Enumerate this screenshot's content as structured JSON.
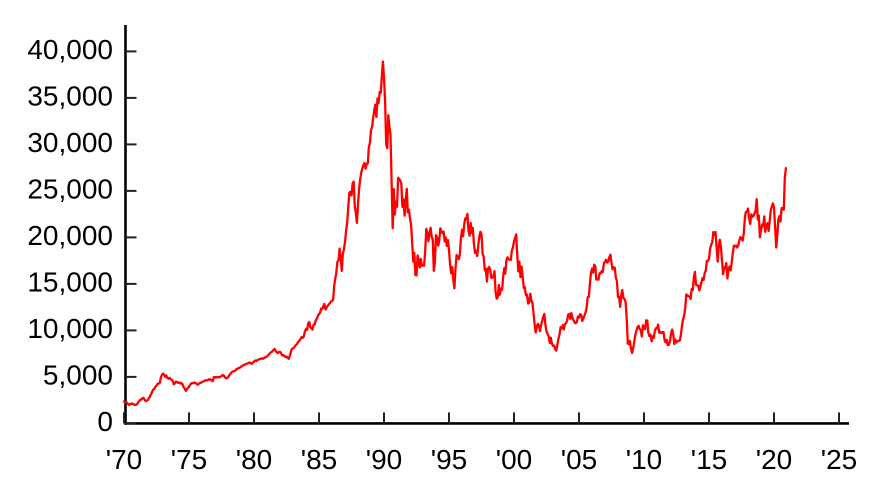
{
  "figure": {
    "background": "#ffffff",
    "axis_color": "#000000",
    "tick_color": "#222222"
  },
  "chart_data": {
    "type": "line",
    "title": "",
    "xlabel": "",
    "ylabel": "",
    "grid": false,
    "legend": "none",
    "line_color": "#ff0000",
    "xlim": [
      1970,
      2025.8
    ],
    "ylim": [
      0,
      42800
    ],
    "x_ticks": [
      {
        "label": "'70",
        "year": 1970
      },
      {
        "label": "'75",
        "year": 1975
      },
      {
        "label": "'80",
        "year": 1980
      },
      {
        "label": "'85",
        "year": 1985
      },
      {
        "label": "'90",
        "year": 1990
      },
      {
        "label": "'95",
        "year": 1995
      },
      {
        "label": "'00",
        "year": 2000
      },
      {
        "label": "'05",
        "year": 2005
      },
      {
        "label": "'10",
        "year": 2010
      },
      {
        "label": "'15",
        "year": 2015
      },
      {
        "label": "'20",
        "year": 2020
      },
      {
        "label": "'25",
        "year": 2025
      }
    ],
    "y_ticks": [
      {
        "label": "0",
        "value": 0
      },
      {
        "label": "5,000",
        "value": 5000
      },
      {
        "label": "10,000",
        "value": 10000
      },
      {
        "label": "15,000",
        "value": 15000
      },
      {
        "label": "20,000",
        "value": 20000
      },
      {
        "label": "25,000",
        "value": 25000
      },
      {
        "label": "30,000",
        "value": 30000
      },
      {
        "label": "35,000",
        "value": 35000
      },
      {
        "label": "40,000",
        "value": 40000
      }
    ],
    "x_start_year": 1970,
    "points_per_year": 12,
    "values": [
      2360,
      2330,
      2250,
      2200,
      2050,
      2000,
      2100,
      2150,
      2100,
      2050,
      1980,
      1990,
      2080,
      2250,
      2400,
      2550,
      2550,
      2700,
      2750,
      2550,
      2400,
      2450,
      2500,
      2714,
      2900,
      3150,
      3400,
      3650,
      3700,
      3950,
      4050,
      4250,
      4300,
      4350,
      4900,
      5207,
      5350,
      5250,
      5000,
      5150,
      4900,
      4800,
      4900,
      4750,
      4700,
      4550,
      4200,
      4307,
      4500,
      4450,
      4350,
      4400,
      4300,
      4350,
      4200,
      3900,
      3750,
      3500,
      3650,
      3817,
      3950,
      4150,
      4300,
      4350,
      4300,
      4400,
      4350,
      4250,
      4150,
      4250,
      4350,
      4359,
      4450,
      4500,
      4550,
      4650,
      4600,
      4650,
      4700,
      4750,
      4700,
      4600,
      4550,
      4991,
      4950,
      5000,
      4950,
      5000,
      4950,
      5000,
      5100,
      5200,
      5150,
      5000,
      4850,
      4866,
      4950,
      5150,
      5300,
      5450,
      5550,
      5600,
      5650,
      5700,
      5850,
      5900,
      5950,
      6002,
      6100,
      6150,
      6250,
      6300,
      6350,
      6400,
      6450,
      6500,
      6550,
      6450,
      6400,
      6569,
      6650,
      6750,
      6700,
      6800,
      6850,
      6900,
      6950,
      7000,
      6950,
      7000,
      7100,
      7116,
      7200,
      7300,
      7450,
      7600,
      7650,
      7750,
      7900,
      8000,
      7800,
      7650,
      7550,
      7682,
      7700,
      7550,
      7300,
      7350,
      7250,
      7150,
      7200,
      7050,
      6950,
      7250,
      7650,
      8017,
      8050,
      8150,
      8350,
      8450,
      8600,
      8800,
      8900,
      9100,
      9300,
      9200,
      9350,
      9894,
      10150,
      10050,
      10750,
      10900,
      10350,
      10250,
      10100,
      10600,
      10650,
      11100,
      11250,
      11543,
      11750,
      11900,
      12350,
      12300,
      12600,
      12850,
      12250,
      12450,
      12650,
      12800,
      12900,
      13113,
      13150,
      13300,
      14800,
      15600,
      16200,
      17400,
      17500,
      18800,
      17800,
      16400,
      18200,
      18701,
      19500,
      20700,
      21600,
      23300,
      24800,
      24900,
      24500,
      25800,
      26000,
      23300,
      22700,
      21564,
      23600,
      25200,
      26260,
      27000,
      27400,
      27800,
      28000,
      27400,
      27900,
      27950,
      29650,
      30159,
      31500,
      31900,
      32840,
      33710,
      34270,
      32950,
      34950,
      34430,
      35640,
      35550,
      37270,
      38916,
      37189,
      34592,
      29980,
      29585,
      33131,
      31940,
      31035,
      25978,
      20984,
      25194,
      22455,
      23849,
      23293,
      26409,
      26292,
      26111,
      25790,
      23291,
      24121,
      22336,
      23916,
      25222,
      22687,
      22984,
      22023,
      21339,
      19346,
      17391,
      18348,
      15952,
      15910,
      18061,
      17400,
      16767,
      17684,
      16925,
      17024,
      16953,
      18591,
      20919,
      20552,
      19590,
      20380,
      21027,
      20105,
      19703,
      16406,
      17417,
      20229,
      19997,
      19112,
      19725,
      20974,
      20643,
      20449,
      20629,
      19564,
      19990,
      19070,
      19723,
      18650,
      17053,
      16140,
      16807,
      15437,
      14517,
      16677,
      18117,
      17913,
      17655,
      18109,
      19868,
      20813,
      20125,
      21407,
      22041,
      21956,
      22531,
      20693,
      20167,
      21556,
      20467,
      21020,
      19361,
      18330,
      18557,
      18003,
      19151,
      20069,
      20605,
      20331,
      18229,
      17888,
      16459,
      16636,
      15259,
      16628,
      16832,
      16527,
      15641,
      15671,
      15830,
      16379,
      14108,
      13406,
      13565,
      14884,
      13842,
      14499,
      14368,
      15837,
      16702,
      16112,
      17530,
      17861,
      17633,
      17605,
      17582,
      18559,
      18934,
      19540,
      19959,
      20337,
      17974,
      16332,
      17411,
      15727,
      16861,
      15747,
      14540,
      14649,
      13786,
      13844,
      12884,
      12999,
      13934,
      13262,
      12969,
      11861,
      10714,
      9775,
      10366,
      10697,
      10543,
      9919,
      10588,
      11025,
      11493,
      11764,
      10622,
      9878,
      9619,
      9383,
      8640,
      9216,
      8579,
      8340,
      8363,
      7973,
      7831,
      8425,
      9083,
      9563,
      10343,
      10219,
      10559,
      10100,
      10677,
      10784,
      11041,
      11715,
      11762,
      11236,
      11859,
      11326,
      11082,
      10824,
      10772,
      10899,
      11489,
      11388,
      11740,
      11669,
      11009,
      11277,
      11584,
      11900,
      12414,
      13574,
      13606,
      14872,
      16111,
      16649,
      16205,
      17060,
      16906,
      15467,
      15505,
      15457,
      16141,
      16128,
      16399,
      16274,
      17226,
      17383,
      17604,
      17288,
      17400,
      17876,
      18138,
      17249,
      16569,
      16786,
      16738,
      15681,
      15308,
      13592,
      13603,
      12526,
      13850,
      14339,
      13481,
      13377,
      13073,
      11260,
      8577,
      8512,
      8860,
      7994,
      7568,
      8110,
      8828,
      9523,
      9958,
      10357,
      10493,
      10133,
      10035,
      9346,
      10546,
      10198,
      10126,
      11090,
      11057,
      9769,
      9383,
      9537,
      8824,
      9369,
      9202,
      9937,
      10229,
      10237,
      10624,
      9755,
      9850,
      9694,
      9816,
      9833,
      8955,
      8700,
      8988,
      8435,
      8455,
      8803,
      9723,
      10084,
      9521,
      8543,
      9007,
      8695,
      8840,
      8870,
      8928,
      9446,
      10395,
      11139,
      11559,
      12398,
      13861,
      13775,
      13677,
      13668,
      13389,
      14456,
      14328,
      15662,
      16291,
      14915,
      14841,
      14828,
      14304,
      14632,
      15162,
      15621,
      15425,
      16174,
      16414,
      17460,
      17451,
      17674,
      18798,
      19207,
      19520,
      20563,
      20236,
      20585,
      18890,
      17388,
      19083,
      19747,
      19034,
      17518,
      16027,
      16759,
      16666,
      17235,
      15576,
      16569,
      16887,
      16450,
      17425,
      18308,
      19114,
      19041,
      19119,
      18909,
      19197,
      19651,
      20033,
      19925,
      19646,
      20356,
      22012,
      22725,
      22765,
      23098,
      22068,
      21454,
      22468,
      22202,
      22305,
      22554,
      22865,
      24120,
      21920,
      22351,
      20015,
      20773,
      21385,
      21206,
      22259,
      20601,
      21276,
      21522,
      20704,
      21756,
      22927,
      23294,
      23657,
      23205,
      21143,
      18917,
      20194,
      21878,
      22288,
      21710,
      23140,
      23185,
      22977,
      26434,
      27444
    ]
  }
}
